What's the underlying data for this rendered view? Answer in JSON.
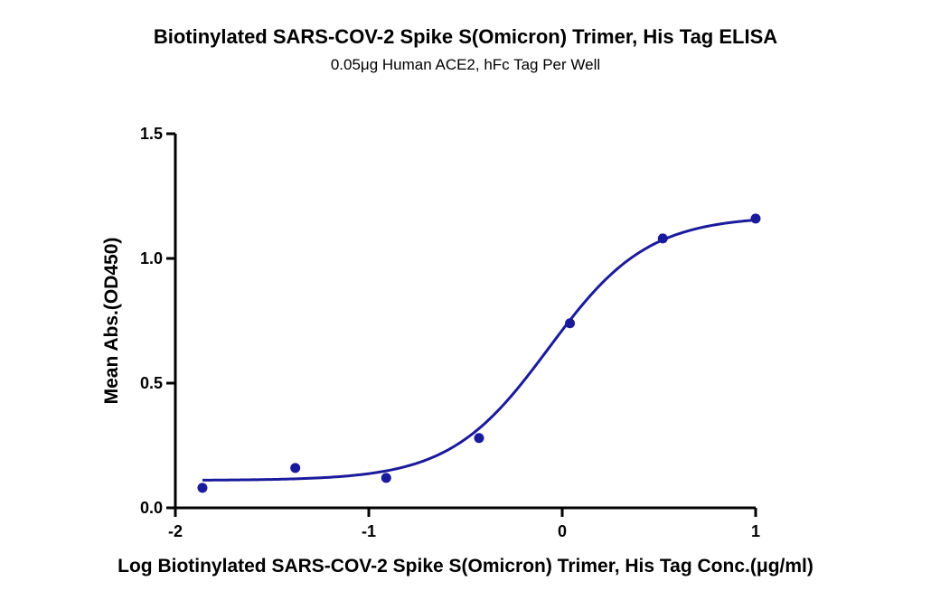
{
  "chart_data": {
    "type": "scatter",
    "title": "Biotinylated SARS-COV-2 Spike S(Omicron) Trimer, His Tag ELISA",
    "subtitle": "0.05μg Human ACE2, hFc Tag Per Well",
    "xlabel": "Log Biotinylated SARS-COV-2 Spike S(Omicron) Trimer, His Tag Conc.(μg/ml)",
    "ylabel": "Mean Abs.(OD450)",
    "xlim": [
      -2,
      1
    ],
    "ylim": [
      0,
      1.5
    ],
    "x_ticks": [
      -2,
      -1,
      0,
      1
    ],
    "x_tick_labels": [
      "-2",
      "-1",
      "0",
      "1"
    ],
    "y_ticks": [
      0,
      0.5,
      1.0,
      1.5
    ],
    "y_tick_labels": [
      "0.0",
      "0.5",
      "1.0",
      "1.5"
    ],
    "grid": false,
    "series": [
      {
        "color": "#1a1a9c",
        "x": [
          -1.86,
          -1.38,
          -0.91,
          -0.43,
          0.04,
          0.52,
          1.0
        ],
        "y": [
          0.08,
          0.16,
          0.12,
          0.28,
          0.74,
          1.08,
          1.16
        ]
      }
    ],
    "fit_curve": {
      "model": "4PL",
      "bottom": 0.11,
      "top": 1.17,
      "logEC50": -0.07,
      "hill": 1.7
    }
  }
}
